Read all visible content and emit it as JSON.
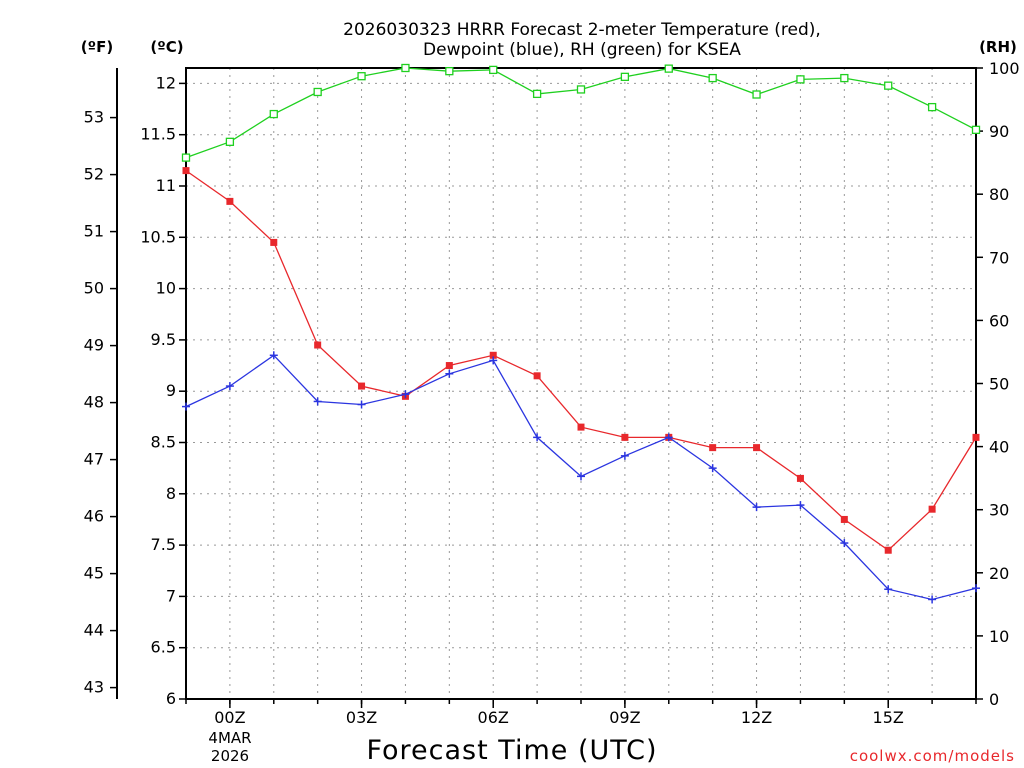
{
  "chart_data": {
    "type": "line",
    "title_line1": "2026030323 HRRR Forecast 2-meter Temperature (red),",
    "title_line2": "Dewpoint (blue), RH (green) for KSEA",
    "xlabel": "Forecast Time (UTC)",
    "date_label_1": "4MAR",
    "date_label_2": "2026",
    "unit_f": "(ºF)",
    "unit_c": "(ºC)",
    "unit_rh": "(RH)",
    "credit": "coolwx.com/models",
    "x_hours": [
      -1,
      0,
      1,
      2,
      3,
      4,
      5,
      6,
      7,
      8,
      9,
      10,
      11,
      12,
      13,
      14,
      15,
      16,
      17
    ],
    "x_ticks": [
      {
        "hour": 0,
        "label": "00Z"
      },
      {
        "hour": 3,
        "label": "03Z"
      },
      {
        "hour": 6,
        "label": "06Z"
      },
      {
        "hour": 9,
        "label": "09Z"
      },
      {
        "hour": 12,
        "label": "12Z"
      },
      {
        "hour": 15,
        "label": "15Z"
      }
    ],
    "xlim": [
      -1,
      17
    ],
    "ylim_c": [
      6,
      12.15
    ],
    "ylim_rh": [
      0,
      100
    ],
    "y_ticks_c": [
      "6",
      "6.5",
      "7",
      "7.5",
      "8",
      "8.5",
      "9",
      "9.5",
      "10",
      "10.5",
      "11",
      "11.5",
      "12"
    ],
    "y_ticks_f": [
      "43",
      "44",
      "45",
      "46",
      "47",
      "48",
      "49",
      "50",
      "51",
      "52",
      "53"
    ],
    "y_ticks_rh": [
      "0",
      "10",
      "20",
      "30",
      "40",
      "50",
      "60",
      "70",
      "80",
      "90",
      "100"
    ],
    "series": [
      {
        "name": "Temperature",
        "unit": "C",
        "color": "#e8282c",
        "values": [
          11.15,
          10.85,
          10.45,
          9.45,
          9.05,
          8.95,
          9.25,
          9.35,
          9.15,
          8.65,
          8.55,
          8.55,
          8.45,
          8.45,
          8.15,
          7.75,
          7.45,
          7.85,
          8.55
        ]
      },
      {
        "name": "Dewpoint",
        "unit": "C",
        "color": "#2b35e0",
        "values": [
          8.85,
          9.05,
          9.35,
          8.9,
          8.87,
          8.97,
          9.17,
          9.3,
          8.55,
          8.17,
          8.37,
          8.55,
          8.25,
          7.87,
          7.89,
          7.52,
          7.07,
          6.97,
          7.08
        ]
      },
      {
        "name": "RH",
        "unit": "%",
        "color": "#1fd01f",
        "values": [
          85.8,
          88.3,
          92.7,
          96.2,
          98.7,
          100,
          99.5,
          99.7,
          95.9,
          96.6,
          98.6,
          99.9,
          98.4,
          95.8,
          98.2,
          98.4,
          97.2,
          93.8,
          90.2
        ]
      }
    ]
  }
}
